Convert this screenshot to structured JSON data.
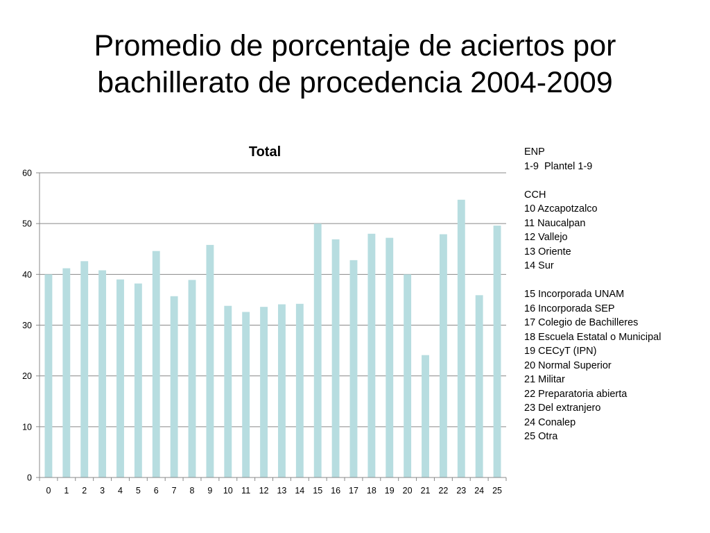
{
  "slide": {
    "title_line1": "Promedio de porcentaje de aciertos por",
    "title_line2": "bachillerato de procedencia 2004-2009"
  },
  "chart_data": {
    "type": "bar",
    "title": "Total",
    "xlabel": "",
    "ylabel": "",
    "categories": [
      "0",
      "1",
      "2",
      "3",
      "4",
      "5",
      "6",
      "7",
      "8",
      "9",
      "10",
      "11",
      "12",
      "13",
      "14",
      "15",
      "16",
      "17",
      "18",
      "19",
      "20",
      "21",
      "22",
      "23",
      "24",
      "25"
    ],
    "values": [
      40.0,
      41.2,
      42.6,
      40.8,
      39.0,
      38.2,
      44.6,
      35.7,
      38.9,
      45.8,
      33.8,
      32.6,
      33.6,
      34.1,
      34.2,
      50.0,
      46.9,
      42.8,
      48.0,
      47.2,
      40.0,
      24.1,
      47.9,
      54.7,
      35.9,
      49.6
    ],
    "yticks": [
      0,
      10,
      20,
      30,
      40,
      50,
      60
    ],
    "ylim": [
      0,
      60
    ],
    "grid": true,
    "bar_color": "#b7dde0",
    "grid_color": "#888888"
  },
  "notes": [
    "ENP",
    "1-9  Plantel 1-9",
    "",
    "CCH",
    "10 Azcapotzalco",
    "11 Naucalpan",
    "12 Vallejo",
    "13 Oriente",
    "14 Sur",
    "",
    "15 Incorporada UNAM",
    "16 Incorporada SEP",
    "17 Colegio de Bachilleres",
    "18 Escuela Estatal o Municipal",
    "19 CECyT (IPN)",
    "20 Normal Superior",
    "21 Militar",
    "22 Preparatoria abierta",
    "23 Del extranjero",
    "24 Conalep",
    "25 Otra"
  ]
}
